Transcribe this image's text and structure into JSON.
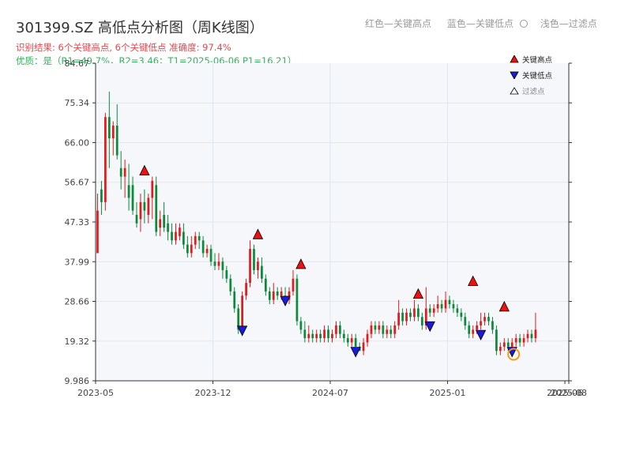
{
  "header": {
    "title": "301399.SZ 高低点分析图（周K线图）",
    "result_line": "识别结果: 6个关键高点, 6个关键低点   准确度: 97.4%",
    "quality_line": "优质：是（R1=49.7%，R2=3.46；T1=2025-06-06 P1=16.21）",
    "legend_red": "红色—关键高点",
    "legend_blue": "蓝色—关键低点",
    "legend_light": "浅色—过滤点"
  },
  "legend": {
    "key_high": "关键高点",
    "key_low": "关键低点",
    "filtered": "过滤点"
  },
  "colors": {
    "up": "#e31a1c",
    "down": "#0b8a3a",
    "high_marker": "#ee1111",
    "low_marker": "#1a1adb",
    "highlight": "#f39c12"
  },
  "chart_data": {
    "type": "candlestick",
    "title": "301399.SZ 高低点分析图（周K线图）",
    "yticks": [
      9.986,
      19.32,
      28.66,
      37.99,
      47.33,
      56.67,
      66.0,
      75.34,
      84.67
    ],
    "ytick_labels": [
      "9.986",
      "19.32",
      "28.66",
      "37.99",
      "47.33",
      "56.67",
      "66.00",
      "75.34",
      "84.67"
    ],
    "ylim": [
      9.986,
      84.67
    ],
    "xticks": [
      0,
      30,
      60,
      90,
      120,
      121
    ],
    "xtick_labels": [
      "2023-05",
      "2023-12",
      "2024-07",
      "2025-01",
      "2025-06",
      "2025-08"
    ],
    "xlim": [
      0,
      121
    ],
    "candles": [
      [
        40,
        50,
        54,
        40
      ],
      [
        55,
        52,
        57,
        49
      ],
      [
        52,
        72,
        73,
        50
      ],
      [
        72,
        67,
        78,
        60
      ],
      [
        67,
        70,
        71,
        63
      ],
      [
        70,
        63,
        75,
        62
      ],
      [
        60,
        58,
        64,
        55
      ],
      [
        58,
        60,
        62,
        53
      ],
      [
        56,
        53,
        61,
        50
      ],
      [
        56,
        50,
        58,
        49
      ],
      [
        49,
        47,
        52,
        46
      ],
      [
        48,
        52,
        54,
        45
      ],
      [
        52,
        50,
        55,
        47
      ],
      [
        49,
        53,
        54,
        47
      ],
      [
        53,
        57,
        58,
        48
      ],
      [
        56,
        45,
        58,
        44
      ],
      [
        46,
        48,
        50,
        44
      ],
      [
        49,
        46,
        52,
        45
      ],
      [
        47,
        45,
        49,
        43
      ],
      [
        45,
        43,
        47,
        42
      ],
      [
        43,
        45,
        47,
        42
      ],
      [
        44,
        46,
        47,
        43
      ],
      [
        45,
        42,
        47,
        41
      ],
      [
        42,
        40,
        44,
        39
      ],
      [
        40,
        42,
        44,
        39
      ],
      [
        42,
        44,
        45,
        41
      ],
      [
        44,
        43,
        45,
        41
      ],
      [
        43,
        40,
        44,
        39
      ],
      [
        40,
        41,
        42,
        39
      ],
      [
        41,
        38,
        42,
        37
      ],
      [
        38,
        37,
        40,
        36
      ],
      [
        37,
        38,
        40,
        36
      ],
      [
        38,
        36,
        39,
        34
      ],
      [
        36,
        34,
        37,
        33
      ],
      [
        34,
        31,
        35,
        30
      ],
      [
        31,
        27,
        32,
        26
      ],
      [
        27,
        22,
        28,
        21
      ],
      [
        22,
        30,
        31,
        21
      ],
      [
        30,
        33,
        34,
        29
      ],
      [
        33,
        41,
        43,
        32
      ],
      [
        41,
        36,
        42,
        35
      ],
      [
        36,
        38,
        39,
        34
      ],
      [
        37,
        34,
        39,
        33
      ],
      [
        34,
        31,
        35,
        30
      ],
      [
        31,
        29,
        32,
        28
      ],
      [
        29,
        31,
        33,
        28
      ],
      [
        31,
        30,
        32,
        29
      ],
      [
        30,
        31,
        32,
        29
      ],
      [
        30,
        29,
        32,
        28
      ],
      [
        29,
        31,
        32,
        28
      ],
      [
        31,
        34,
        36,
        30
      ],
      [
        34,
        24,
        35,
        23
      ],
      [
        24,
        22,
        25,
        21
      ],
      [
        22,
        20,
        24,
        19
      ],
      [
        20,
        21,
        23,
        19
      ],
      [
        21,
        20,
        22,
        19
      ],
      [
        20,
        21,
        22,
        19
      ],
      [
        21,
        20,
        22,
        19
      ],
      [
        20,
        22,
        23,
        19
      ],
      [
        22,
        20,
        23,
        19
      ],
      [
        20,
        21,
        22,
        19
      ],
      [
        21,
        23,
        24,
        20
      ],
      [
        23,
        21,
        24,
        20
      ],
      [
        21,
        20,
        22,
        19
      ],
      [
        20,
        19,
        21,
        18
      ],
      [
        19,
        20,
        21,
        18
      ],
      [
        20,
        18,
        21,
        18
      ],
      [
        18,
        17,
        19,
        17
      ],
      [
        17,
        19,
        20,
        16
      ],
      [
        19,
        21,
        22,
        18
      ],
      [
        21,
        23,
        24,
        20
      ],
      [
        23,
        22,
        24,
        21
      ],
      [
        22,
        23,
        24,
        21
      ],
      [
        23,
        21,
        24,
        20
      ],
      [
        21,
        22,
        23,
        20
      ],
      [
        22,
        21,
        23,
        20
      ],
      [
        21,
        23,
        24,
        20
      ],
      [
        23,
        26,
        29,
        22
      ],
      [
        26,
        24,
        27,
        23
      ],
      [
        24,
        26,
        27,
        23
      ],
      [
        26,
        25,
        27,
        24
      ],
      [
        25,
        27,
        29,
        24
      ],
      [
        27,
        25,
        28,
        24
      ],
      [
        25,
        23,
        26,
        22
      ],
      [
        23,
        27,
        32,
        22
      ],
      [
        27,
        26,
        28,
        25
      ],
      [
        26,
        27,
        28,
        25
      ],
      [
        27,
        28,
        30,
        26
      ],
      [
        28,
        27,
        29,
        26
      ],
      [
        27,
        29,
        31,
        26
      ],
      [
        29,
        28,
        30,
        27
      ],
      [
        28,
        27,
        29,
        26
      ],
      [
        27,
        26,
        28,
        25
      ],
      [
        26,
        25,
        27,
        24
      ],
      [
        25,
        23,
        26,
        22
      ],
      [
        23,
        21,
        24,
        20
      ],
      [
        21,
        22,
        23,
        20
      ],
      [
        22,
        23,
        24,
        21
      ],
      [
        23,
        24,
        26,
        22
      ],
      [
        24,
        25,
        26,
        23
      ],
      [
        25,
        24,
        26,
        23
      ],
      [
        24,
        22,
        25,
        21
      ],
      [
        22,
        17,
        23,
        16
      ],
      [
        17,
        18,
        19,
        16
      ],
      [
        18,
        19,
        20,
        17
      ],
      [
        19,
        18,
        20,
        17
      ],
      [
        18,
        19,
        20,
        17
      ],
      [
        19,
        20,
        21,
        18
      ],
      [
        20,
        19,
        21,
        18
      ],
      [
        19,
        20,
        21,
        18
      ],
      [
        20,
        21,
        22,
        19
      ],
      [
        21,
        20,
        22,
        19
      ],
      [
        20,
        22,
        26,
        19
      ]
    ],
    "key_highs": [
      {
        "i": 12,
        "v": 58
      },
      {
        "i": 41,
        "v": 43
      },
      {
        "i": 52,
        "v": 36
      },
      {
        "i": 82,
        "v": 29
      },
      {
        "i": 96,
        "v": 32
      },
      {
        "i": 104,
        "v": 26
      }
    ],
    "key_lows": [
      {
        "i": 37,
        "v": 21
      },
      {
        "i": 48,
        "v": 28
      },
      {
        "i": 66,
        "v": 16
      },
      {
        "i": 85,
        "v": 22
      },
      {
        "i": 98,
        "v": 20
      },
      {
        "i": 106,
        "v": 16
      }
    ],
    "highlight": {
      "i": 107,
      "v": 16.21
    }
  }
}
